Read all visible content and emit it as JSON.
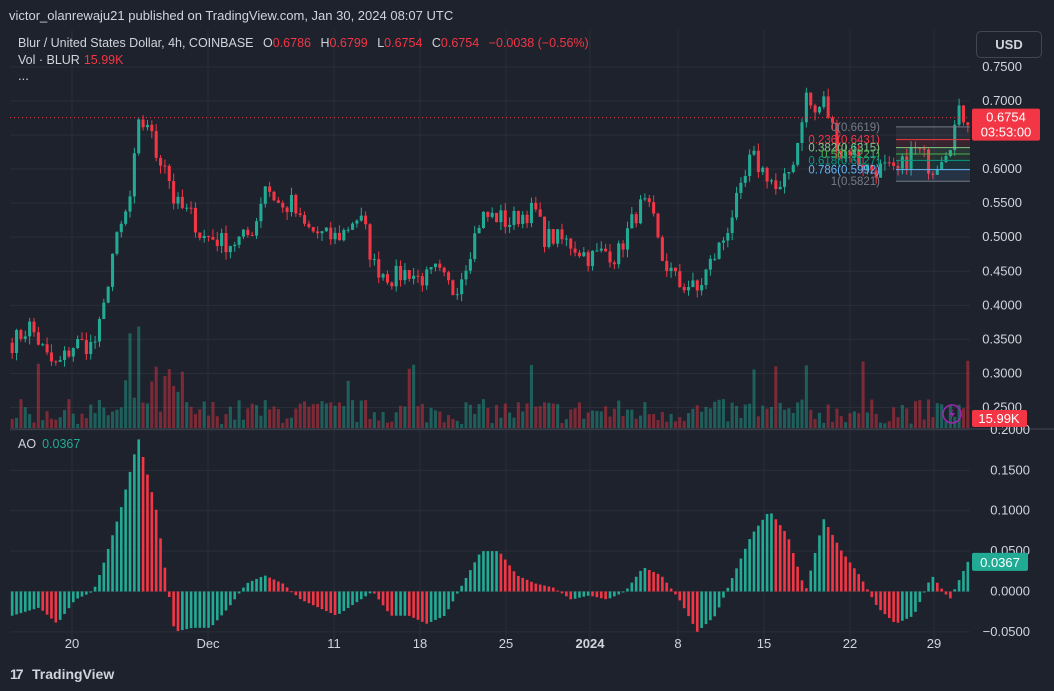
{
  "header": {
    "published": "victor_olanrewaju21 published on TradingView.com, Jan 30, 2024 08:07 UTC",
    "symbol": "Blur / United States Dollar, 4h, COINBASE",
    "o_label": "O",
    "o_value": "0.6786",
    "h_label": "H",
    "h_value": "0.6799",
    "l_label": "L",
    "l_value": "0.6754",
    "c_label": "C",
    "c_value": "0.6754",
    "change": "−0.0038 (−0.56%)",
    "vol_label": "Vol · BLUR",
    "vol_value": "15.99K",
    "more": "..."
  },
  "currency_button": "USD",
  "ao_label": "AO",
  "ao_value": "0.0367",
  "footer": {
    "brand": "TradingView",
    "logo_glyph": "17"
  },
  "colors": {
    "background": "#1e222d",
    "grid": "#2a2e39",
    "up": "#22ab94",
    "down": "#f23645",
    "text": "#d1d4dc"
  },
  "chart_data": [
    {
      "type": "candlestick",
      "title": "Blur / United States Dollar, 4h, COINBASE",
      "ylim": [
        0.22,
        0.76
      ],
      "y_ticks": [
        "0.7500",
        "0.7000",
        "0.6500",
        "0.6000",
        "0.5500",
        "0.5000",
        "0.4500",
        "0.4000",
        "0.3500",
        "0.3000",
        "0.2500"
      ],
      "x_ticks": [
        "20",
        "Dec",
        "11",
        "18",
        "25",
        "2024",
        "8",
        "15",
        "22",
        "29"
      ],
      "last_price": "0.6754",
      "countdown": "03:53:00",
      "volume_label": "15.99K",
      "price_path": [
        [
          0,
          0.345
        ],
        [
          2,
          0.37
        ],
        [
          4,
          0.32
        ],
        [
          5,
          0.31
        ],
        [
          7,
          0.345
        ],
        [
          9,
          0.34
        ],
        [
          10,
          0.38
        ],
        [
          11,
          0.47
        ],
        [
          13,
          0.55
        ],
        [
          14,
          0.66
        ],
        [
          15,
          0.67
        ],
        [
          16,
          0.62
        ],
        [
          17,
          0.61
        ],
        [
          18,
          0.55
        ],
        [
          20,
          0.53
        ],
        [
          21,
          0.5
        ],
        [
          22,
          0.5
        ],
        [
          24,
          0.49
        ],
        [
          26,
          0.5
        ],
        [
          27,
          0.52
        ],
        [
          28,
          0.58
        ],
        [
          30,
          0.54
        ],
        [
          31,
          0.55
        ],
        [
          32,
          0.52
        ],
        [
          33,
          0.51
        ],
        [
          35,
          0.5
        ],
        [
          36,
          0.5
        ],
        [
          37,
          0.51
        ],
        [
          38,
          0.53
        ],
        [
          39,
          0.52
        ],
        [
          40,
          0.46
        ],
        [
          41,
          0.45
        ],
        [
          42,
          0.44
        ],
        [
          44,
          0.45
        ],
        [
          45,
          0.44
        ],
        [
          46,
          0.44
        ],
        [
          47,
          0.45
        ],
        [
          49,
          0.42
        ],
        [
          50,
          0.45
        ],
        [
          51,
          0.49
        ],
        [
          52,
          0.53
        ],
        [
          54,
          0.53
        ],
        [
          55,
          0.52
        ],
        [
          56,
          0.53
        ],
        [
          58,
          0.54
        ],
        [
          59,
          0.5
        ],
        [
          60,
          0.5
        ],
        [
          62,
          0.49
        ],
        [
          63,
          0.48
        ],
        [
          64,
          0.47
        ],
        [
          66,
          0.48
        ],
        [
          67,
          0.47
        ],
        [
          69,
          0.53
        ],
        [
          70,
          0.55
        ],
        [
          71,
          0.53
        ],
        [
          72,
          0.47
        ],
        [
          73,
          0.45
        ],
        [
          74,
          0.43
        ],
        [
          75,
          0.43
        ],
        [
          76,
          0.42
        ],
        [
          77,
          0.45
        ],
        [
          79,
          0.5
        ],
        [
          80,
          0.54
        ],
        [
          81,
          0.57
        ],
        [
          82,
          0.62
        ],
        [
          83,
          0.6
        ],
        [
          84,
          0.59
        ],
        [
          85,
          0.56
        ],
        [
          86,
          0.59
        ],
        [
          87,
          0.63
        ],
        [
          88,
          0.71
        ],
        [
          89,
          0.68
        ],
        [
          90,
          0.7
        ],
        [
          91,
          0.66
        ],
        [
          92,
          0.62
        ],
        [
          93,
          0.63
        ],
        [
          94,
          0.61
        ],
        [
          95,
          0.6
        ],
        [
          96,
          0.6
        ],
        [
          97,
          0.6
        ],
        [
          98,
          0.59
        ],
        [
          99,
          0.61
        ],
        [
          100,
          0.63
        ],
        [
          101,
          0.62
        ],
        [
          102,
          0.6
        ],
        [
          103,
          0.62
        ],
        [
          104,
          0.64
        ],
        [
          105,
          0.68
        ],
        [
          106,
          0.6754
        ]
      ],
      "fibonacci": [
        {
          "level": "0(0.6619)",
          "color": "#787b86"
        },
        {
          "level": "0.236(0.6431)",
          "color": "#f23645"
        },
        {
          "level": "0.382(0.6315)",
          "color": "#81c784"
        },
        {
          "level": "0.5(0.6221)",
          "color": "#4caf50"
        },
        {
          "level": "0.618(0.6127)",
          "color": "#089981"
        },
        {
          "level": "0.786(0.5992)",
          "color": "#64b5f6"
        },
        {
          "level": "1(0.5821)",
          "color": "#787b86"
        }
      ],
      "fibonacci_values": [
        0.6619,
        0.6431,
        0.6315,
        0.6221,
        0.6127,
        0.5992,
        0.5821
      ]
    },
    {
      "type": "bar",
      "title": "AO",
      "ylim": [
        -0.07,
        0.2
      ],
      "y_ticks": [
        "0.2000",
        "0.1500",
        "0.1000",
        "0.0500",
        "0.0000",
        "−0.0500"
      ],
      "last_value": "0.0367",
      "ao_path": [
        [
          0,
          -0.03
        ],
        [
          3,
          -0.02
        ],
        [
          5,
          -0.04
        ],
        [
          7,
          -0.01
        ],
        [
          9,
          0.0
        ],
        [
          10,
          0.03
        ],
        [
          12,
          0.1
        ],
        [
          14,
          0.19
        ],
        [
          16,
          0.1
        ],
        [
          18,
          -0.05
        ],
        [
          20,
          -0.045
        ],
        [
          22,
          -0.045
        ],
        [
          24,
          -0.02
        ],
        [
          26,
          0.01
        ],
        [
          28,
          0.02
        ],
        [
          30,
          0.01
        ],
        [
          32,
          -0.01
        ],
        [
          34,
          -0.02
        ],
        [
          36,
          -0.03
        ],
        [
          38,
          -0.015
        ],
        [
          40,
          0.0
        ],
        [
          42,
          -0.03
        ],
        [
          44,
          -0.03
        ],
        [
          46,
          -0.04
        ],
        [
          48,
          -0.03
        ],
        [
          50,
          0.01
        ],
        [
          52,
          0.05
        ],
        [
          54,
          0.05
        ],
        [
          56,
          0.02
        ],
        [
          58,
          0.01
        ],
        [
          60,
          0.005
        ],
        [
          62,
          -0.01
        ],
        [
          64,
          -0.005
        ],
        [
          66,
          -0.01
        ],
        [
          68,
          0.0
        ],
        [
          70,
          0.03
        ],
        [
          72,
          0.02
        ],
        [
          74,
          -0.01
        ],
        [
          76,
          -0.05
        ],
        [
          78,
          -0.03
        ],
        [
          80,
          0.02
        ],
        [
          82,
          0.07
        ],
        [
          84,
          0.1
        ],
        [
          86,
          0.07
        ],
        [
          88,
          0.0
        ],
        [
          90,
          0.09
        ],
        [
          92,
          0.05
        ],
        [
          94,
          0.02
        ],
        [
          96,
          -0.02
        ],
        [
          98,
          -0.04
        ],
        [
          100,
          -0.03
        ],
        [
          102,
          0.02
        ],
        [
          104,
          -0.01
        ],
        [
          106,
          0.0367
        ]
      ]
    }
  ]
}
